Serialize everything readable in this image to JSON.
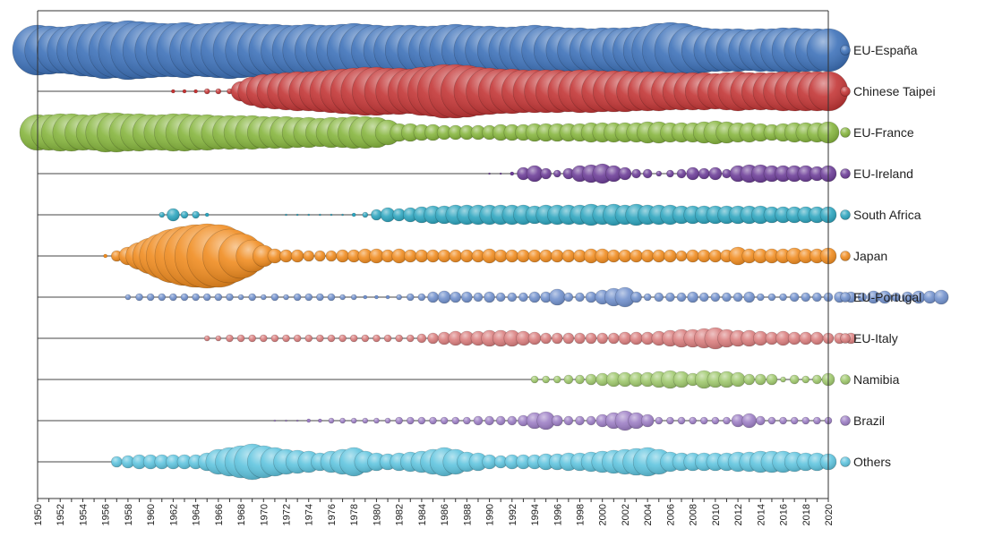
{
  "chart_data": {
    "type": "scatter",
    "chart_style": "bubble timeline",
    "x_range": [
      1950,
      2020
    ],
    "x_tick_labels": [
      "1950",
      "1952",
      "1954",
      "1956",
      "1958",
      "1960",
      "1962",
      "1964",
      "1966",
      "1968",
      "1970",
      "1972",
      "1974",
      "1976",
      "1978",
      "1980",
      "1982",
      "1984",
      "1986",
      "1988",
      "1990",
      "1992",
      "1994",
      "1996",
      "1998",
      "2000",
      "2002",
      "2004",
      "2006",
      "2008",
      "2010",
      "2012",
      "2014",
      "2016",
      "2018",
      "2020"
    ],
    "grid": false,
    "legend_placement": "right",
    "series": [
      {
        "name": "EU-España",
        "color": "#3a6fb8",
        "start_year": 1950,
        "values": [
          28,
          27,
          26,
          27,
          29,
          30,
          32,
          31,
          33,
          32,
          31,
          30,
          30,
          31,
          29,
          30,
          31,
          32,
          31,
          30,
          29,
          29,
          28,
          28,
          29,
          28,
          28,
          29,
          30,
          29,
          28,
          27,
          28,
          28,
          27,
          27,
          28,
          29,
          28,
          27,
          27,
          26,
          26,
          27,
          28,
          27,
          26,
          25,
          25,
          24,
          25,
          25,
          25,
          26,
          27,
          30,
          31,
          30,
          27,
          25,
          24,
          24,
          24,
          23,
          24,
          24,
          25,
          25,
          24,
          24,
          24
        ]
      },
      {
        "name": "Chinese Taipei",
        "color": "#c23232",
        "start_year": 1962,
        "values": [
          2,
          2,
          2,
          3,
          3,
          3,
          11,
          16,
          19,
          20,
          21,
          22,
          22,
          23,
          24,
          25,
          26,
          27,
          27,
          26,
          26,
          25,
          27,
          28,
          30,
          30,
          29,
          27,
          26,
          25,
          25,
          24,
          24,
          24,
          24,
          23,
          24,
          24,
          23,
          23,
          23,
          22,
          22,
          22,
          21,
          21,
          21,
          21,
          20,
          21,
          22,
          21,
          21,
          21,
          22,
          22,
          22,
          22,
          22
        ]
      },
      {
        "name": "EU-France",
        "color": "#84b43a",
        "start_year": 1950,
        "values": [
          20,
          20,
          21,
          21,
          20,
          20,
          22,
          22,
          21,
          21,
          20,
          20,
          21,
          21,
          20,
          20,
          19,
          19,
          19,
          19,
          18,
          18,
          18,
          17,
          17,
          16,
          17,
          17,
          18,
          18,
          17,
          14,
          10,
          10,
          9,
          9,
          8,
          8,
          8,
          8,
          8,
          9,
          9,
          9,
          10,
          10,
          10,
          10,
          10,
          11,
          11,
          11,
          11,
          11,
          12,
          12,
          11,
          11,
          11,
          12,
          13,
          12,
          11,
          11,
          10,
          9,
          10,
          11,
          11,
          11,
          12
        ]
      },
      {
        "name": "EU-Ireland",
        "color": "#6a3a96",
        "start_year": 1990,
        "values": [
          1,
          1,
          2,
          7,
          9,
          6,
          4,
          6,
          9,
          10,
          11,
          9,
          7,
          5,
          5,
          3,
          4,
          5,
          7,
          6,
          7,
          5,
          9,
          10,
          10,
          9,
          9,
          9,
          9,
          8,
          9
        ]
      },
      {
        "name": "South Africa",
        "color": "#2aa4be",
        "start_year": 1961,
        "values": [
          3,
          7,
          4,
          4,
          2,
          0,
          0,
          0,
          0,
          0,
          0,
          1,
          1,
          1,
          1,
          1,
          1,
          2,
          3,
          6,
          8,
          7,
          8,
          9,
          10,
          10,
          11,
          11,
          11,
          11,
          11,
          11,
          11,
          10,
          11,
          11,
          11,
          11,
          12,
          11,
          12,
          11,
          12,
          11,
          11,
          11,
          10,
          10,
          10,
          10,
          10,
          10,
          10,
          10,
          9,
          9,
          9,
          9,
          9,
          9
        ]
      },
      {
        "name": "Japan",
        "color": "#f08a1c",
        "start_year": 1956,
        "values": [
          2,
          6,
          10,
          15,
          20,
          25,
          30,
          33,
          35,
          36,
          35,
          30,
          25,
          18,
          12,
          8,
          7,
          7,
          6,
          6,
          6,
          7,
          7,
          8,
          8,
          7,
          8,
          7,
          7,
          7,
          7,
          7,
          7,
          7,
          8,
          7,
          7,
          7,
          7,
          7,
          7,
          7,
          7,
          8,
          8,
          7,
          7,
          7,
          7,
          7,
          7,
          6,
          7,
          7,
          7,
          7,
          10,
          8,
          8,
          8,
          8,
          9,
          8,
          8,
          9
        ]
      },
      {
        "name": "EU-Portugal",
        "color": "#6f8fcc",
        "start_year": 1958,
        "values": [
          3,
          4,
          4,
          4,
          4,
          4,
          4,
          4,
          4,
          4,
          3,
          4,
          3,
          4,
          3,
          4,
          4,
          4,
          4,
          3,
          3,
          2,
          2,
          2,
          3,
          4,
          4,
          6,
          7,
          6,
          6,
          5,
          6,
          5,
          5,
          5,
          6,
          6,
          9,
          5,
          5,
          6,
          8,
          10,
          11,
          6,
          4,
          5,
          5,
          5,
          6,
          5,
          5,
          5,
          5,
          6,
          4,
          4,
          4,
          5,
          5,
          5,
          5,
          6,
          6,
          5,
          7,
          7,
          5,
          6,
          7,
          7,
          8
        ]
      },
      {
        "name": "EU-Italy",
        "color": "#d97b7b",
        "start_year": 1965,
        "values": [
          3,
          3,
          4,
          4,
          4,
          4,
          4,
          4,
          4,
          4,
          4,
          4,
          4,
          4,
          4,
          4,
          4,
          4,
          4,
          5,
          6,
          7,
          8,
          8,
          8,
          9,
          9,
          9,
          8,
          7,
          6,
          6,
          6,
          6,
          6,
          6,
          6,
          7,
          7,
          7,
          8,
          9,
          10,
          10,
          11,
          12,
          10,
          9,
          9,
          8,
          7,
          8,
          7,
          7,
          7,
          6,
          6,
          6
        ]
      },
      {
        "name": "Namibia",
        "color": "#9dc76a",
        "start_year": 1994,
        "values": [
          4,
          4,
          4,
          5,
          5,
          6,
          7,
          8,
          8,
          8,
          8,
          9,
          10,
          9,
          7,
          10,
          9,
          9,
          8,
          6,
          6,
          6,
          3,
          5,
          4,
          5,
          7
        ]
      },
      {
        "name": "Brazil",
        "color": "#9b7cc4",
        "start_year": 1971,
        "values": [
          1,
          1,
          1,
          2,
          2,
          3,
          3,
          3,
          3,
          3,
          3,
          4,
          4,
          4,
          4,
          4,
          4,
          4,
          5,
          5,
          5,
          5,
          6,
          9,
          10,
          6,
          5,
          5,
          5,
          7,
          9,
          11,
          9,
          7,
          4,
          4,
          4,
          4,
          4,
          4,
          4,
          7,
          8,
          5,
          4,
          4,
          4,
          4,
          4,
          4
        ]
      },
      {
        "name": "Others",
        "color": "#5cc3de",
        "start_year": 1957,
        "values": [
          6,
          7,
          8,
          8,
          8,
          8,
          8,
          8,
          10,
          14,
          16,
          18,
          20,
          18,
          16,
          14,
          13,
          12,
          10,
          12,
          14,
          16,
          12,
          10,
          9,
          10,
          11,
          12,
          14,
          16,
          14,
          11,
          10,
          8,
          7,
          8,
          8,
          8,
          9,
          9,
          10,
          10,
          11,
          12,
          13,
          14,
          15,
          16,
          14,
          11,
          10,
          10,
          10,
          10,
          10,
          11,
          11,
          12,
          12,
          12,
          11,
          10,
          10,
          9
        ]
      }
    ]
  }
}
